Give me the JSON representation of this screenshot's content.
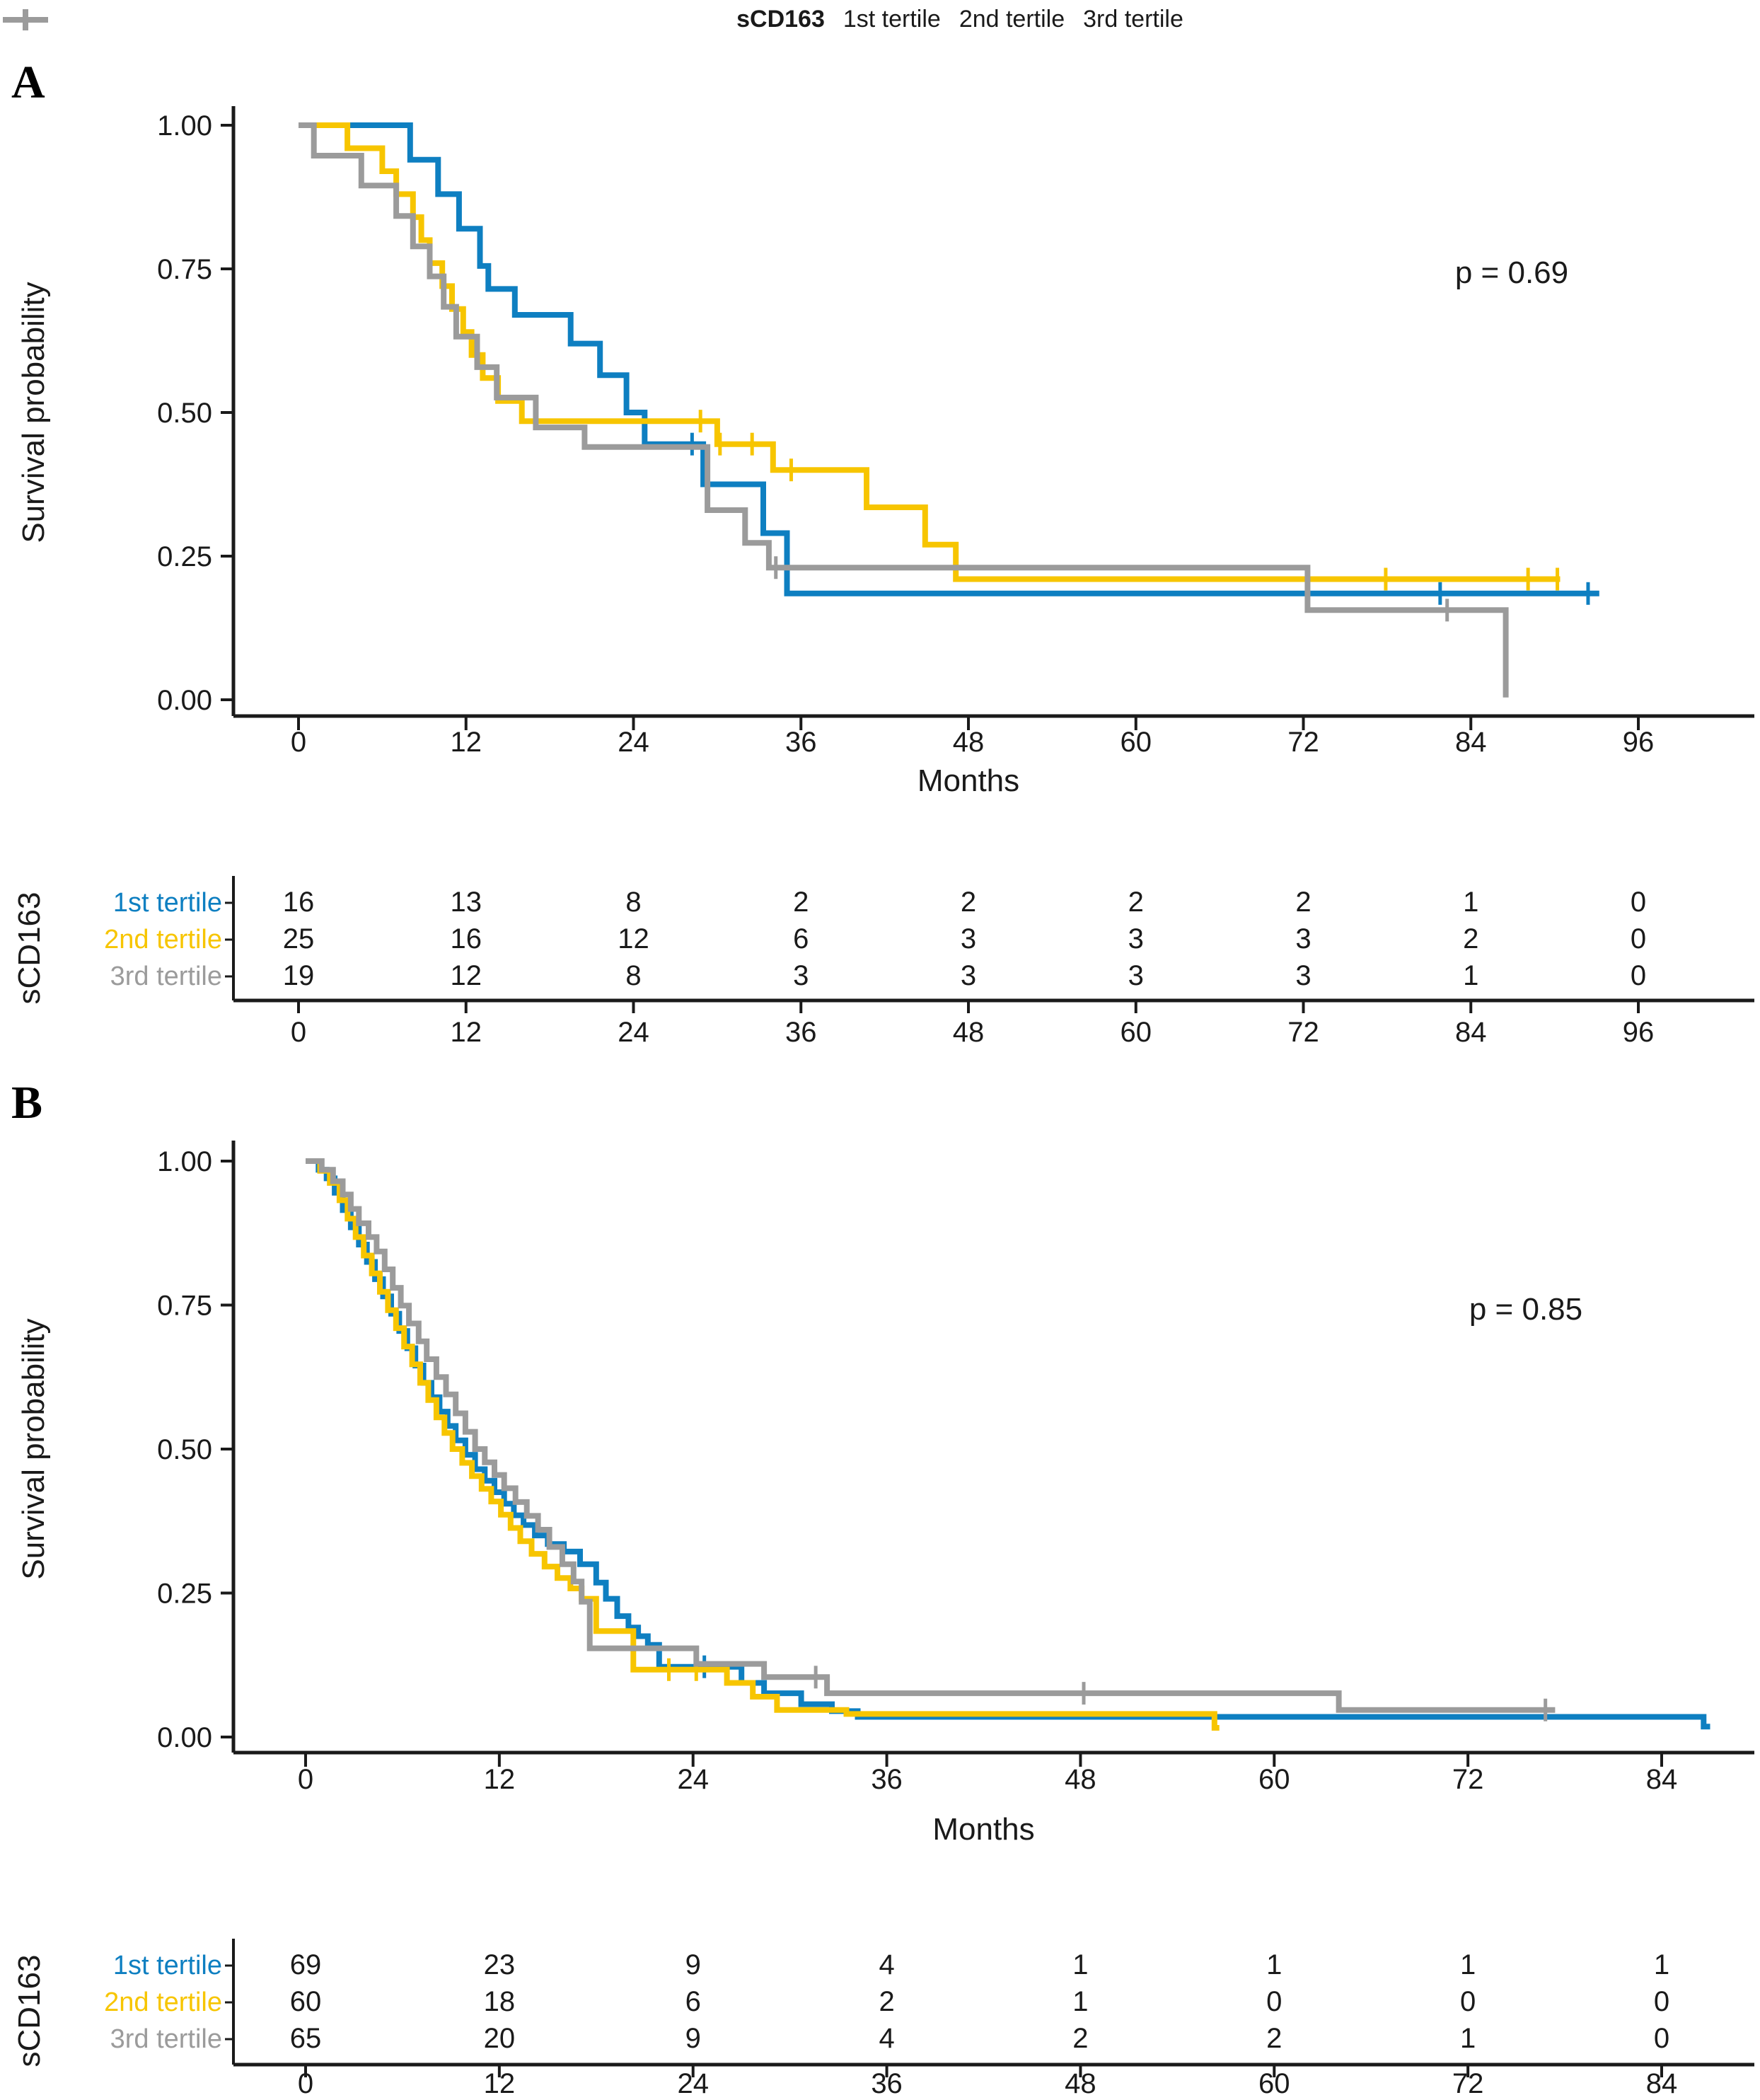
{
  "colors": {
    "tertile1": "#0E7FC1",
    "tertile2": "#F7C500",
    "tertile3": "#9B9B9B",
    "axis": "#1a1a1a",
    "text": "#1a1a1a"
  },
  "legend": {
    "title": "sCD163",
    "items": [
      {
        "label": "1st tertile",
        "color_key": "tertile1"
      },
      {
        "label": "2nd tertile",
        "color_key": "tertile2"
      },
      {
        "label": "3rd tertile",
        "color_key": "tertile3"
      }
    ]
  },
  "chart_data": [
    {
      "type": "line",
      "subtype": "kaplan_meier_step",
      "panel_label": "A",
      "p_value_label": "p = 0.69",
      "xlabel": "Months",
      "ylabel": "Survival probability",
      "xlim": [
        0,
        96
      ],
      "ylim": [
        0,
        1
      ],
      "xticks": [
        0,
        12,
        24,
        36,
        48,
        60,
        72,
        84,
        96
      ],
      "yticks": [
        0,
        0.25,
        0.5,
        0.75,
        1
      ],
      "grid": false,
      "legend_position": "top",
      "series": [
        {
          "name": "1st tertile",
          "color_key": "tertile1",
          "steps": [
            [
              0,
              1.0
            ],
            [
              8,
              0.94
            ],
            [
              10,
              0.88
            ],
            [
              11.5,
              0.82
            ],
            [
              13,
              0.755
            ],
            [
              13.6,
              0.715
            ],
            [
              15.5,
              0.67
            ],
            [
              19.5,
              0.62
            ],
            [
              21.6,
              0.565
            ],
            [
              23.5,
              0.5
            ],
            [
              24.8,
              0.445
            ],
            [
              29,
              0.375
            ],
            [
              33.3,
              0.29
            ],
            [
              35,
              0.185
            ]
          ],
          "end_month": 93.2,
          "censors": [
            [
              28.2,
              0.445
            ],
            [
              81.8,
              0.185
            ],
            [
              92.4,
              0.185
            ]
          ]
        },
        {
          "name": "2nd tertile",
          "color_key": "tertile2",
          "steps": [
            [
              0,
              1.0
            ],
            [
              3.5,
              0.96
            ],
            [
              6,
              0.92
            ],
            [
              7,
              0.88
            ],
            [
              8.2,
              0.84
            ],
            [
              8.8,
              0.8
            ],
            [
              9.4,
              0.76
            ],
            [
              10.3,
              0.72
            ],
            [
              11,
              0.68
            ],
            [
              11.8,
              0.64
            ],
            [
              12.4,
              0.6
            ],
            [
              13.2,
              0.56
            ],
            [
              14.3,
              0.52
            ],
            [
              16,
              0.485
            ],
            [
              30,
              0.445
            ],
            [
              34,
              0.4
            ],
            [
              40.7,
              0.335
            ],
            [
              44.9,
              0.27
            ],
            [
              47.1,
              0.21
            ]
          ],
          "end_month": 90.4,
          "censors": [
            [
              28.8,
              0.485
            ],
            [
              30.2,
              0.445
            ],
            [
              32.5,
              0.445
            ],
            [
              35.3,
              0.4
            ],
            [
              77.9,
              0.21
            ],
            [
              88.1,
              0.21
            ],
            [
              90.2,
              0.21
            ]
          ]
        },
        {
          "name": "3rd tertile",
          "color_key": "tertile3",
          "steps": [
            [
              0,
              1.0
            ],
            [
              1.1,
              0.947
            ],
            [
              4.5,
              0.895
            ],
            [
              7,
              0.842
            ],
            [
              8.2,
              0.789
            ],
            [
              9.4,
              0.737
            ],
            [
              10.4,
              0.684
            ],
            [
              11.3,
              0.632
            ],
            [
              12.8,
              0.579
            ],
            [
              14.2,
              0.526
            ],
            [
              17,
              0.474
            ],
            [
              20.5,
              0.44
            ],
            [
              29.3,
              0.33
            ],
            [
              32,
              0.273
            ],
            [
              33.7,
              0.23
            ],
            [
              72.3,
              0.156
            ],
            [
              86.5,
              0.004
            ]
          ],
          "end_month": 86.5,
          "censors": [
            [
              34.2,
              0.23
            ],
            [
              82.3,
              0.156
            ]
          ]
        }
      ],
      "risk_table": {
        "axis_label": "sCD163",
        "time_points": [
          0,
          12,
          24,
          36,
          48,
          60,
          72,
          84,
          96
        ],
        "rows": [
          {
            "name": "1st tertile",
            "color_key": "tertile1",
            "counts": [
              16,
              13,
              8,
              2,
              2,
              2,
              2,
              1,
              0
            ]
          },
          {
            "name": "2nd tertile",
            "color_key": "tertile2",
            "counts": [
              25,
              16,
              12,
              6,
              3,
              3,
              3,
              2,
              0
            ]
          },
          {
            "name": "3rd tertile",
            "color_key": "tertile3",
            "counts": [
              19,
              12,
              8,
              3,
              3,
              3,
              3,
              1,
              0
            ]
          }
        ]
      }
    },
    {
      "type": "line",
      "subtype": "kaplan_meier_step",
      "panel_label": "B",
      "p_value_label": "p = 0.85",
      "xlabel": "Months",
      "ylabel": "Survival probability",
      "xlim": [
        0,
        84
      ],
      "ylim": [
        0,
        1
      ],
      "xticks": [
        0,
        12,
        24,
        36,
        48,
        60,
        72,
        84
      ],
      "yticks": [
        0,
        0.25,
        0.5,
        0.75,
        1
      ],
      "grid": false,
      "legend_position": "top",
      "series": [
        {
          "name": "1st tertile",
          "color_key": "tertile1",
          "steps": [
            [
              0,
              1.0
            ],
            [
              0.8,
              0.985
            ],
            [
              1.3,
              0.97
            ],
            [
              1.8,
              0.945
            ],
            [
              2.3,
              0.915
            ],
            [
              2.8,
              0.885
            ],
            [
              3.3,
              0.855
            ],
            [
              3.8,
              0.825
            ],
            [
              4.3,
              0.795
            ],
            [
              4.8,
              0.765
            ],
            [
              5.3,
              0.735
            ],
            [
              5.8,
              0.705
            ],
            [
              6.3,
              0.675
            ],
            [
              6.8,
              0.645
            ],
            [
              7.3,
              0.615
            ],
            [
              7.8,
              0.59
            ],
            [
              8.3,
              0.565
            ],
            [
              8.8,
              0.54
            ],
            [
              9.3,
              0.515
            ],
            [
              9.9,
              0.49
            ],
            [
              10.5,
              0.465
            ],
            [
              11.1,
              0.445
            ],
            [
              11.7,
              0.425
            ],
            [
              12.3,
              0.405
            ],
            [
              12.9,
              0.385
            ],
            [
              13.5,
              0.368
            ],
            [
              14.2,
              0.35
            ],
            [
              15,
              0.335
            ],
            [
              16,
              0.322
            ],
            [
              17,
              0.3
            ],
            [
              18,
              0.268
            ],
            [
              18.6,
              0.24
            ],
            [
              19.3,
              0.21
            ],
            [
              20,
              0.19
            ],
            [
              20.6,
              0.175
            ],
            [
              21.2,
              0.16
            ],
            [
              21.9,
              0.122
            ],
            [
              27,
              0.094
            ],
            [
              28.4,
              0.076
            ],
            [
              30.7,
              0.057
            ],
            [
              32.6,
              0.045
            ],
            [
              34.2,
              0.035
            ],
            [
              86.6,
              0.018
            ]
          ],
          "end_month": 87,
          "censors": [
            [
              24.7,
              0.122
            ]
          ]
        },
        {
          "name": "2nd tertile",
          "color_key": "tertile2",
          "steps": [
            [
              0,
              1.0
            ],
            [
              0.9,
              0.983
            ],
            [
              1.5,
              0.962
            ],
            [
              2.1,
              0.932
            ],
            [
              2.6,
              0.9
            ],
            [
              3.1,
              0.868
            ],
            [
              3.6,
              0.836
            ],
            [
              4.1,
              0.805
            ],
            [
              4.6,
              0.773
            ],
            [
              5.1,
              0.741
            ],
            [
              5.6,
              0.71
            ],
            [
              6.1,
              0.678
            ],
            [
              6.6,
              0.647
            ],
            [
              7.1,
              0.615
            ],
            [
              7.6,
              0.585
            ],
            [
              8.1,
              0.555
            ],
            [
              8.6,
              0.528
            ],
            [
              9.1,
              0.5
            ],
            [
              9.7,
              0.476
            ],
            [
              10.3,
              0.453
            ],
            [
              10.9,
              0.431
            ],
            [
              11.5,
              0.409
            ],
            [
              12.1,
              0.386
            ],
            [
              12.7,
              0.363
            ],
            [
              13.3,
              0.34
            ],
            [
              14,
              0.318
            ],
            [
              14.8,
              0.296
            ],
            [
              15.6,
              0.276
            ],
            [
              16.4,
              0.258
            ],
            [
              17.1,
              0.24
            ],
            [
              18,
              0.184
            ],
            [
              20.3,
              0.117
            ],
            [
              26.1,
              0.094
            ],
            [
              27.7,
              0.07
            ],
            [
              29.2,
              0.047
            ],
            [
              33.5,
              0.04
            ],
            [
              56.3,
              0.016
            ]
          ],
          "end_month": 56.6,
          "censors": [
            [
              22.5,
              0.117
            ],
            [
              24.2,
              0.117
            ]
          ]
        },
        {
          "name": "3rd tertile",
          "color_key": "tertile3",
          "steps": [
            [
              0,
              1.0
            ],
            [
              1,
              0.985
            ],
            [
              1.7,
              0.965
            ],
            [
              2.3,
              0.942
            ],
            [
              2.8,
              0.917
            ],
            [
              3.3,
              0.892
            ],
            [
              3.9,
              0.868
            ],
            [
              4.4,
              0.843
            ],
            [
              4.9,
              0.812
            ],
            [
              5.4,
              0.78
            ],
            [
              5.9,
              0.749
            ],
            [
              6.4,
              0.718
            ],
            [
              7,
              0.687
            ],
            [
              7.5,
              0.656
            ],
            [
              8.1,
              0.625
            ],
            [
              8.7,
              0.595
            ],
            [
              9.3,
              0.562
            ],
            [
              9.9,
              0.53
            ],
            [
              10.5,
              0.5
            ],
            [
              11.1,
              0.477
            ],
            [
              11.7,
              0.455
            ],
            [
              12.3,
              0.432
            ],
            [
              13,
              0.408
            ],
            [
              13.7,
              0.384
            ],
            [
              14.4,
              0.36
            ],
            [
              15.1,
              0.33
            ],
            [
              15.9,
              0.3
            ],
            [
              16.6,
              0.27
            ],
            [
              17.1,
              0.235
            ],
            [
              17.6,
              0.154
            ],
            [
              24.2,
              0.127
            ],
            [
              28.4,
              0.104
            ],
            [
              32.3,
              0.076
            ],
            [
              64,
              0.047
            ]
          ],
          "end_month": 77.4,
          "censors": [
            [
              31.6,
              0.104
            ],
            [
              48.2,
              0.076
            ],
            [
              76.8,
              0.047
            ]
          ]
        }
      ],
      "risk_table": {
        "axis_label": "sCD163",
        "time_points": [
          0,
          12,
          24,
          36,
          48,
          60,
          72,
          84
        ],
        "rows": [
          {
            "name": "1st tertile",
            "color_key": "tertile1",
            "counts": [
              69,
              23,
              9,
              4,
              1,
              1,
              1,
              1
            ]
          },
          {
            "name": "2nd tertile",
            "color_key": "tertile2",
            "counts": [
              60,
              18,
              6,
              2,
              1,
              0,
              0,
              0
            ]
          },
          {
            "name": "3rd tertile",
            "color_key": "tertile3",
            "counts": [
              65,
              20,
              9,
              4,
              2,
              2,
              1,
              0
            ]
          }
        ]
      }
    }
  ]
}
